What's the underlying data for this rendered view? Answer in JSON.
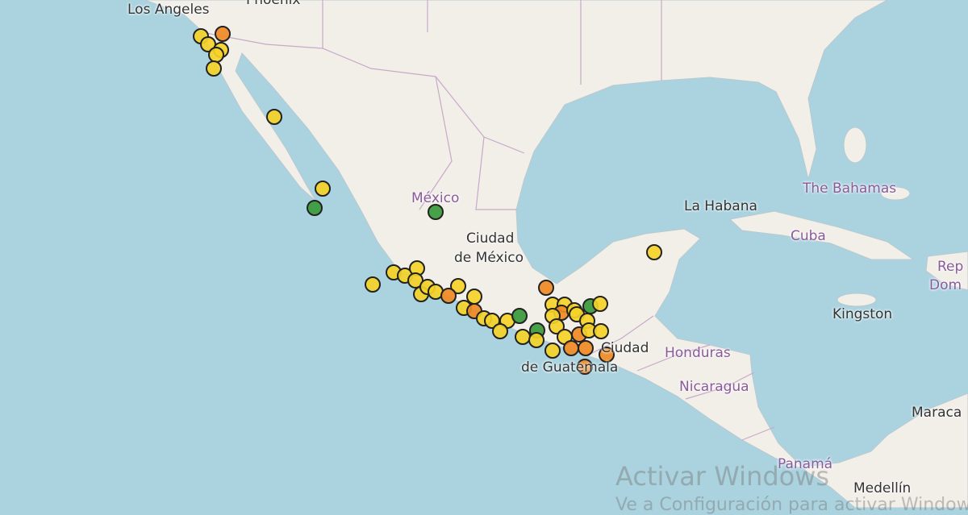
{
  "map": {
    "colors": {
      "ocean": "#aad3df",
      "land": "#f2efe9",
      "border": "#c7a9c9",
      "marker_yellow": "#f5d327",
      "marker_orange": "#f08a24",
      "marker_green": "#3a9a3a",
      "marker_outline": "#222222"
    },
    "labels": {
      "los_angeles": "Los Angeles",
      "phoenix": "Phoenix",
      "mexico": "México",
      "ciudad_de_mexico_1": "Ciudad",
      "ciudad_de_mexico_2": "de México",
      "la_habana": "La Habana",
      "bahamas": "The Bahamas",
      "cuba": "Cuba",
      "rep_dom_1": "Rep",
      "rep_dom_2": "Dom",
      "kingston": "Kingston",
      "guatemala_1": "Ciudad",
      "guatemala_2": "de Guatemala",
      "honduras": "Honduras",
      "nicaragua": "Nicaragua",
      "panama": "Panamá",
      "maracaibo": "Maraca",
      "medellin": "Medellín"
    }
  },
  "watermark": {
    "line1": "Activar Windows",
    "line2": "Ve a Configuración para activar Windows."
  }
}
